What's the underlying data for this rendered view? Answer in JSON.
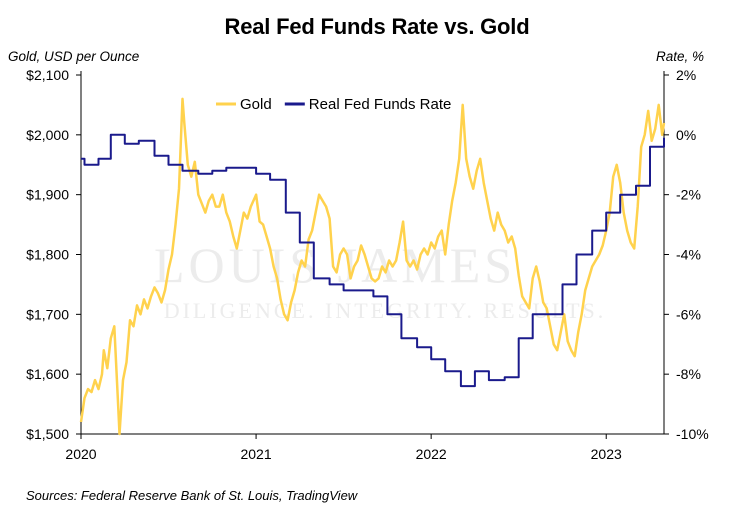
{
  "chart_data": {
    "type": "line",
    "title": "Real Fed Funds Rate vs. Gold",
    "y_left_label": "Gold, USD per Ounce",
    "y_right_label": "Rate, %",
    "source": "Sources: Federal Reserve Bank of St. Louis, TradingView",
    "watermark": {
      "main": "LOUIS JAMES",
      "motto": "DILIGENCE. INTEGRITY. RESULTS."
    },
    "x_ticks": [
      "2020",
      "2021",
      "2022",
      "2023"
    ],
    "x_range": [
      2020.0,
      2023.33
    ],
    "y_left_range": [
      1500,
      2100
    ],
    "y_left_ticks": [
      "$1,500",
      "$1,600",
      "$1,700",
      "$1,800",
      "$1,900",
      "$2,000",
      "$2,100"
    ],
    "y_right_range": [
      -10,
      2
    ],
    "y_right_ticks": [
      "-10%",
      "-8%",
      "-6%",
      "-4%",
      "-2%",
      "0%",
      "2%"
    ],
    "legend_position": "top-center",
    "series": [
      {
        "name": "Gold",
        "axis": "left",
        "color": "#ffd24d",
        "points": [
          [
            2020.0,
            1520
          ],
          [
            2020.02,
            1560
          ],
          [
            2020.04,
            1575
          ],
          [
            2020.06,
            1570
          ],
          [
            2020.08,
            1590
          ],
          [
            2020.1,
            1575
          ],
          [
            2020.12,
            1600
          ],
          [
            2020.13,
            1640
          ],
          [
            2020.15,
            1610
          ],
          [
            2020.17,
            1660
          ],
          [
            2020.19,
            1680
          ],
          [
            2020.21,
            1560
          ],
          [
            2020.22,
            1500
          ],
          [
            2020.24,
            1590
          ],
          [
            2020.26,
            1620
          ],
          [
            2020.28,
            1690
          ],
          [
            2020.3,
            1680
          ],
          [
            2020.32,
            1715
          ],
          [
            2020.34,
            1700
          ],
          [
            2020.36,
            1725
          ],
          [
            2020.38,
            1710
          ],
          [
            2020.4,
            1730
          ],
          [
            2020.42,
            1745
          ],
          [
            2020.44,
            1735
          ],
          [
            2020.46,
            1720
          ],
          [
            2020.48,
            1740
          ],
          [
            2020.5,
            1775
          ],
          [
            2020.52,
            1800
          ],
          [
            2020.54,
            1850
          ],
          [
            2020.56,
            1910
          ],
          [
            2020.58,
            2060
          ],
          [
            2020.59,
            2020
          ],
          [
            2020.61,
            1950
          ],
          [
            2020.63,
            1930
          ],
          [
            2020.65,
            1955
          ],
          [
            2020.67,
            1900
          ],
          [
            2020.69,
            1885
          ],
          [
            2020.71,
            1870
          ],
          [
            2020.73,
            1890
          ],
          [
            2020.75,
            1900
          ],
          [
            2020.77,
            1880
          ],
          [
            2020.79,
            1880
          ],
          [
            2020.81,
            1900
          ],
          [
            2020.83,
            1870
          ],
          [
            2020.85,
            1855
          ],
          [
            2020.87,
            1830
          ],
          [
            2020.89,
            1810
          ],
          [
            2020.91,
            1840
          ],
          [
            2020.93,
            1870
          ],
          [
            2020.95,
            1860
          ],
          [
            2020.97,
            1880
          ],
          [
            2021.0,
            1900
          ],
          [
            2021.02,
            1855
          ],
          [
            2021.04,
            1850
          ],
          [
            2021.06,
            1830
          ],
          [
            2021.08,
            1810
          ],
          [
            2021.1,
            1780
          ],
          [
            2021.12,
            1760
          ],
          [
            2021.14,
            1725
          ],
          [
            2021.16,
            1700
          ],
          [
            2021.18,
            1690
          ],
          [
            2021.2,
            1720
          ],
          [
            2021.22,
            1740
          ],
          [
            2021.24,
            1770
          ],
          [
            2021.26,
            1790
          ],
          [
            2021.28,
            1780
          ],
          [
            2021.3,
            1825
          ],
          [
            2021.32,
            1840
          ],
          [
            2021.34,
            1870
          ],
          [
            2021.36,
            1900
          ],
          [
            2021.38,
            1890
          ],
          [
            2021.4,
            1880
          ],
          [
            2021.42,
            1860
          ],
          [
            2021.44,
            1780
          ],
          [
            2021.46,
            1770
          ],
          [
            2021.48,
            1800
          ],
          [
            2021.5,
            1810
          ],
          [
            2021.52,
            1800
          ],
          [
            2021.54,
            1760
          ],
          [
            2021.56,
            1780
          ],
          [
            2021.58,
            1790
          ],
          [
            2021.6,
            1815
          ],
          [
            2021.62,
            1800
          ],
          [
            2021.64,
            1780
          ],
          [
            2021.66,
            1760
          ],
          [
            2021.68,
            1755
          ],
          [
            2021.7,
            1760
          ],
          [
            2021.72,
            1780
          ],
          [
            2021.74,
            1770
          ],
          [
            2021.76,
            1790
          ],
          [
            2021.78,
            1780
          ],
          [
            2021.8,
            1790
          ],
          [
            2021.82,
            1820
          ],
          [
            2021.84,
            1855
          ],
          [
            2021.86,
            1790
          ],
          [
            2021.88,
            1780
          ],
          [
            2021.9,
            1790
          ],
          [
            2021.92,
            1775
          ],
          [
            2021.94,
            1800
          ],
          [
            2021.96,
            1810
          ],
          [
            2021.98,
            1800
          ],
          [
            2022.0,
            1820
          ],
          [
            2022.02,
            1810
          ],
          [
            2022.04,
            1830
          ],
          [
            2022.06,
            1840
          ],
          [
            2022.08,
            1800
          ],
          [
            2022.1,
            1850
          ],
          [
            2022.12,
            1890
          ],
          [
            2022.14,
            1920
          ],
          [
            2022.16,
            1960
          ],
          [
            2022.18,
            2050
          ],
          [
            2022.2,
            1960
          ],
          [
            2022.22,
            1930
          ],
          [
            2022.24,
            1910
          ],
          [
            2022.26,
            1940
          ],
          [
            2022.28,
            1960
          ],
          [
            2022.3,
            1920
          ],
          [
            2022.32,
            1890
          ],
          [
            2022.34,
            1860
          ],
          [
            2022.36,
            1840
          ],
          [
            2022.38,
            1870
          ],
          [
            2022.4,
            1850
          ],
          [
            2022.42,
            1840
          ],
          [
            2022.44,
            1820
          ],
          [
            2022.46,
            1830
          ],
          [
            2022.48,
            1810
          ],
          [
            2022.5,
            1765
          ],
          [
            2022.52,
            1730
          ],
          [
            2022.54,
            1720
          ],
          [
            2022.56,
            1710
          ],
          [
            2022.58,
            1760
          ],
          [
            2022.6,
            1780
          ],
          [
            2022.62,
            1755
          ],
          [
            2022.64,
            1720
          ],
          [
            2022.66,
            1710
          ],
          [
            2022.68,
            1680
          ],
          [
            2022.7,
            1650
          ],
          [
            2022.72,
            1640
          ],
          [
            2022.74,
            1670
          ],
          [
            2022.76,
            1700
          ],
          [
            2022.78,
            1655
          ],
          [
            2022.8,
            1640
          ],
          [
            2022.82,
            1630
          ],
          [
            2022.84,
            1670
          ],
          [
            2022.86,
            1700
          ],
          [
            2022.88,
            1740
          ],
          [
            2022.9,
            1760
          ],
          [
            2022.92,
            1780
          ],
          [
            2022.94,
            1790
          ],
          [
            2022.96,
            1800
          ],
          [
            2022.98,
            1815
          ],
          [
            2023.0,
            1840
          ],
          [
            2023.02,
            1870
          ],
          [
            2023.04,
            1930
          ],
          [
            2023.06,
            1950
          ],
          [
            2023.08,
            1920
          ],
          [
            2023.1,
            1870
          ],
          [
            2023.12,
            1840
          ],
          [
            2023.14,
            1820
          ],
          [
            2023.16,
            1810
          ],
          [
            2023.18,
            1880
          ],
          [
            2023.2,
            1980
          ],
          [
            2023.22,
            2000
          ],
          [
            2023.24,
            2040
          ],
          [
            2023.26,
            1990
          ],
          [
            2023.28,
            2010
          ],
          [
            2023.3,
            2050
          ],
          [
            2023.32,
            2000
          ],
          [
            2023.33,
            2020
          ]
        ]
      },
      {
        "name": "Real Fed Funds Rate",
        "axis": "right",
        "color": "#1a1a8c",
        "step": true,
        "points": [
          [
            2020.0,
            -0.8
          ],
          [
            2020.02,
            -1.0
          ],
          [
            2020.1,
            -0.8
          ],
          [
            2020.17,
            0.0
          ],
          [
            2020.25,
            -0.3
          ],
          [
            2020.33,
            -0.2
          ],
          [
            2020.42,
            -0.7
          ],
          [
            2020.5,
            -1.0
          ],
          [
            2020.58,
            -1.2
          ],
          [
            2020.67,
            -1.3
          ],
          [
            2020.75,
            -1.2
          ],
          [
            2020.83,
            -1.1
          ],
          [
            2021.0,
            -1.3
          ],
          [
            2021.08,
            -1.5
          ],
          [
            2021.17,
            -2.6
          ],
          [
            2021.25,
            -3.6
          ],
          [
            2021.33,
            -4.8
          ],
          [
            2021.42,
            -5.0
          ],
          [
            2021.5,
            -5.2
          ],
          [
            2021.58,
            -5.2
          ],
          [
            2021.67,
            -5.4
          ],
          [
            2021.75,
            -6.0
          ],
          [
            2021.83,
            -6.8
          ],
          [
            2021.92,
            -7.1
          ],
          [
            2022.0,
            -7.5
          ],
          [
            2022.08,
            -7.9
          ],
          [
            2022.17,
            -8.4
          ],
          [
            2022.25,
            -7.9
          ],
          [
            2022.33,
            -8.2
          ],
          [
            2022.42,
            -8.1
          ],
          [
            2022.5,
            -6.8
          ],
          [
            2022.58,
            -6.0
          ],
          [
            2022.67,
            -6.0
          ],
          [
            2022.75,
            -5.0
          ],
          [
            2022.83,
            -4.0
          ],
          [
            2022.92,
            -3.2
          ],
          [
            2023.0,
            -2.6
          ],
          [
            2023.08,
            -2.0
          ],
          [
            2023.17,
            -1.7
          ],
          [
            2023.25,
            -0.4
          ],
          [
            2023.33,
            -0.1
          ]
        ]
      }
    ]
  }
}
